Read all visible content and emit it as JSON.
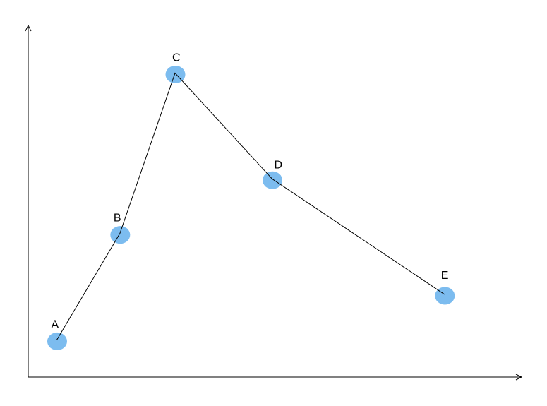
{
  "chart_data": {
    "type": "line",
    "title": "",
    "xlabel": "",
    "ylabel": "",
    "grid": false,
    "legend": "none",
    "xlim": [
      0,
      100
    ],
    "ylim": [
      0,
      100
    ],
    "points": [
      {
        "label": "A",
        "x": 5.8,
        "y": 10.6
      },
      {
        "label": "B",
        "x": 18.6,
        "y": 41.0
      },
      {
        "label": "C",
        "x": 29.8,
        "y": 86.8
      },
      {
        "label": "D",
        "x": 49.5,
        "y": 56.6
      },
      {
        "label": "E",
        "x": 84.5,
        "y": 23.6
      }
    ],
    "colors": {
      "marker": "#7cbcef",
      "line": "#000000",
      "axis": "#000000"
    }
  }
}
